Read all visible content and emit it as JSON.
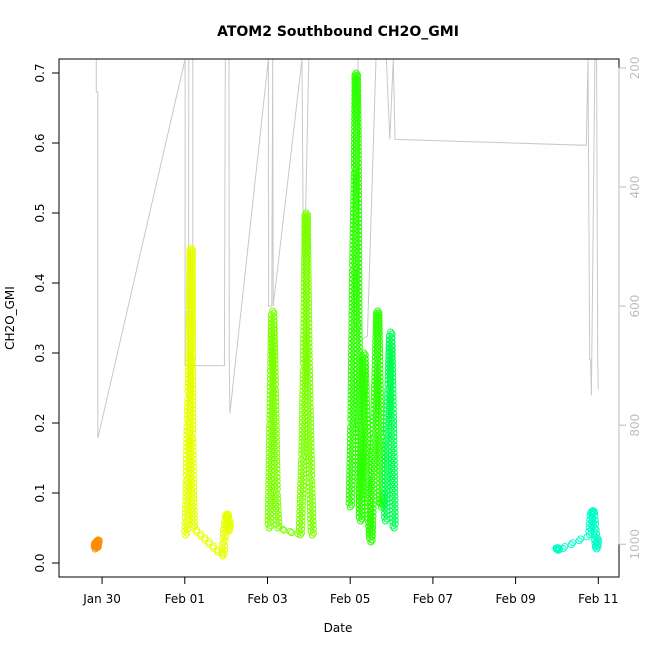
{
  "chart_data": {
    "type": "scatter",
    "title": "ATOM2 Southbound CH2O_GMI",
    "xlabel": "Date",
    "ylabel": "CH2O_GMI",
    "x_tick_labels": [
      "Jan 30",
      "Feb 01",
      "Feb 03",
      "Feb 05",
      "Feb 07",
      "Feb 09",
      "Feb 11"
    ],
    "x_tick_dates": [
      "2017-01-30",
      "2017-02-01",
      "2017-02-03",
      "2017-02-05",
      "2017-02-07",
      "2017-02-09",
      "2017-02-11"
    ],
    "xlim": [
      "2017-01-28T23:00",
      "2017-02-11T12:00"
    ],
    "ylim": [
      -0.02,
      0.72
    ],
    "y_ticks": [
      0.0,
      0.1,
      0.2,
      0.3,
      0.4,
      0.5,
      0.6,
      0.7
    ],
    "y_tick_labels": [
      "0.0",
      "0.1",
      "0.2",
      "0.3",
      "0.4",
      "0.5",
      "0.6",
      "0.7"
    ],
    "right_axis": {
      "reversed": true,
      "ylim": [
        1055,
        185
      ],
      "ticks": [
        200,
        400,
        600,
        800,
        1000
      ],
      "tick_labels": [
        "200",
        "400",
        "600",
        "800",
        "1000"
      ],
      "color": "#bdbdbd"
    },
    "grid": false,
    "legend": "none",
    "series": [
      {
        "color": "#ff8c00",
        "points": [
          [
            "2017-01-29T20:00",
            0.02
          ],
          [
            "2017-01-29T20:20",
            0.03
          ],
          [
            "2017-01-29T20:40",
            0.025
          ],
          [
            "2017-01-29T21:00",
            0.022
          ],
          [
            "2017-01-29T21:20",
            0.028
          ],
          [
            "2017-01-29T21:40",
            0.033
          ]
        ]
      },
      {
        "color": "#e6ff00",
        "points": [
          [
            "2017-02-01T00:30",
            0.04
          ],
          [
            "2017-02-01T01:00",
            0.06
          ],
          [
            "2017-02-01T01:30",
            0.12
          ],
          [
            "2017-02-01T02:00",
            0.2
          ],
          [
            "2017-02-01T02:30",
            0.24
          ],
          [
            "2017-02-01T03:00",
            0.3
          ],
          [
            "2017-02-01T03:15",
            0.36
          ],
          [
            "2017-02-01T03:30",
            0.42
          ],
          [
            "2017-02-01T03:45",
            0.45
          ],
          [
            "2017-02-01T04:00",
            0.18
          ],
          [
            "2017-02-01T04:30",
            0.1
          ],
          [
            "2017-02-01T05:00",
            0.05
          ],
          [
            "2017-02-01T22:00",
            0.01
          ],
          [
            "2017-02-01T22:40",
            0.03
          ],
          [
            "2017-02-01T23:20",
            0.05
          ],
          [
            "2017-02-02T00:00",
            0.065
          ],
          [
            "2017-02-02T00:40",
            0.07
          ],
          [
            "2017-02-02T01:20",
            0.045
          ],
          [
            "2017-02-02T02:00",
            0.06
          ]
        ]
      },
      {
        "color": "#7cff00",
        "points": [
          [
            "2017-02-03T01:00",
            0.05
          ],
          [
            "2017-02-03T02:00",
            0.2
          ],
          [
            "2017-02-03T03:00",
            0.36
          ],
          [
            "2017-02-03T04:00",
            0.25
          ],
          [
            "2017-02-03T05:00",
            0.1
          ],
          [
            "2017-02-03T06:00",
            0.05
          ],
          [
            "2017-02-03T19:00",
            0.04
          ],
          [
            "2017-02-03T20:30",
            0.15
          ],
          [
            "2017-02-03T21:30",
            0.28
          ],
          [
            "2017-02-03T22:30",
            0.5
          ],
          [
            "2017-02-03T23:30",
            0.3
          ],
          [
            "2017-02-04T01:00",
            0.12
          ],
          [
            "2017-02-04T02:00",
            0.04
          ]
        ]
      },
      {
        "color": "#2cff00",
        "points": [
          [
            "2017-02-05T00:00",
            0.08
          ],
          [
            "2017-02-05T01:00",
            0.2
          ],
          [
            "2017-02-05T02:00",
            0.42
          ],
          [
            "2017-02-05T03:00",
            0.56
          ],
          [
            "2017-02-05T03:30",
            0.7
          ],
          [
            "2017-02-05T04:00",
            0.62
          ],
          [
            "2017-02-05T04:30",
            0.34
          ],
          [
            "2017-02-05T06:00",
            0.06
          ],
          [
            "2017-02-05T08:00",
            0.3
          ],
          [
            "2017-02-05T10:00",
            0.12
          ],
          [
            "2017-02-05T12:00",
            0.03
          ],
          [
            "2017-02-05T14:00",
            0.18
          ],
          [
            "2017-02-05T16:00",
            0.36
          ],
          [
            "2017-02-05T18:00",
            0.08
          ],
          [
            "2017-02-05T20:00",
            0.1
          ]
        ]
      },
      {
        "color": "#00ff50",
        "points": [
          [
            "2017-02-05T20:30",
            0.06
          ],
          [
            "2017-02-05T21:30",
            0.18
          ],
          [
            "2017-02-05T22:30",
            0.25
          ],
          [
            "2017-02-05T23:30",
            0.33
          ],
          [
            "2017-02-06T00:30",
            0.2
          ],
          [
            "2017-02-06T01:30",
            0.05
          ]
        ]
      },
      {
        "color": "#00ffc8",
        "points": [
          [
            "2017-02-10T00:00",
            0.02
          ],
          [
            "2017-02-10T00:20",
            0.022
          ],
          [
            "2017-02-10T00:40",
            0.018
          ],
          [
            "2017-02-10T19:00",
            0.04
          ],
          [
            "2017-02-10T20:00",
            0.07
          ],
          [
            "2017-02-10T21:00",
            0.075
          ],
          [
            "2017-02-10T22:00",
            0.05
          ],
          [
            "2017-02-10T23:00",
            0.02
          ],
          [
            "2017-02-10T23:40",
            0.035
          ]
        ]
      }
    ],
    "altitude_track": [
      [
        "2017-01-29T20:40",
        185
      ],
      [
        "2017-01-29T20:40",
        240
      ],
      [
        "2017-01-29T21:30",
        240
      ],
      [
        "2017-01-29T21:30",
        820
      ],
      [
        "2017-01-29T21:40",
        820
      ],
      [
        "2017-02-01T00:10",
        185
      ],
      [
        "2017-02-01T00:10",
        700
      ],
      [
        "2017-02-01T02:10",
        700
      ],
      [
        "2017-02-01T02:20",
        185
      ],
      [
        "2017-02-01T04:40",
        185
      ],
      [
        "2017-02-01T04:40",
        700
      ],
      [
        "2017-02-01T23:00",
        700
      ],
      [
        "2017-02-01T23:30",
        185
      ],
      [
        "2017-02-02T01:40",
        185
      ],
      [
        "2017-02-02T01:50",
        700
      ],
      [
        "2017-02-02T02:10",
        780
      ],
      [
        "2017-02-03T00:30",
        185
      ],
      [
        "2017-02-03T00:40",
        600
      ],
      [
        "2017-02-03T02:30",
        600
      ],
      [
        "2017-02-03T03:00",
        185
      ],
      [
        "2017-02-03T03:20",
        600
      ],
      [
        "2017-02-03T20:00",
        185
      ],
      [
        "2017-02-03T21:00",
        600
      ],
      [
        "2017-02-04T00:00",
        185
      ],
      [
        "2017-02-05T00:00",
        185
      ],
      [
        "2017-02-05T02:30",
        185
      ],
      [
        "2017-02-05T04:30",
        185
      ],
      [
        "2017-02-05T05:00",
        660
      ],
      [
        "2017-02-05T10:00",
        650
      ],
      [
        "2017-02-05T15:00",
        185
      ],
      [
        "2017-02-05T20:00",
        185
      ],
      [
        "2017-02-05T21:00",
        185
      ],
      [
        "2017-02-05T23:00",
        320
      ],
      [
        "2017-02-06T01:00",
        185
      ],
      [
        "2017-02-06T02:00",
        320
      ],
      [
        "2017-02-10T17:00",
        330
      ],
      [
        "2017-02-10T18:00",
        185
      ],
      [
        "2017-02-10T19:00",
        690
      ],
      [
        "2017-02-10T19:30",
        690
      ],
      [
        "2017-02-10T20:00",
        750
      ],
      [
        "2017-02-10T22:00",
        185
      ],
      [
        "2017-02-10T23:00",
        185
      ],
      [
        "2017-02-10T23:40",
        690
      ],
      [
        "2017-02-11T00:00",
        740
      ]
    ]
  }
}
